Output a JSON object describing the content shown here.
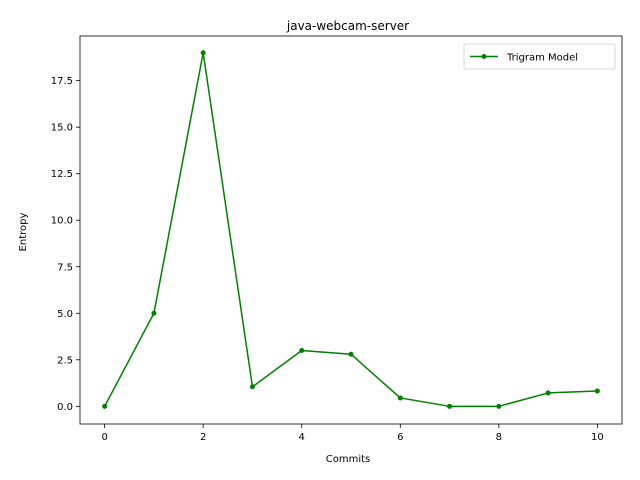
{
  "chart_data": {
    "type": "line",
    "title": "java-webcam-server",
    "xlabel": "Commits",
    "ylabel": "Entropy",
    "xlim": [
      -0.5,
      10.5
    ],
    "ylim": [
      -0.95,
      19.9
    ],
    "x_ticks": [
      0,
      2,
      4,
      6,
      8,
      10
    ],
    "y_ticks": [
      0.0,
      2.5,
      5.0,
      7.5,
      10.0,
      12.5,
      15.0,
      17.5
    ],
    "y_tick_labels": [
      "0.0",
      "2.5",
      "5.0",
      "7.5",
      "10.0",
      "12.5",
      "15.0",
      "17.5"
    ],
    "grid": false,
    "legend_position": "top-right",
    "series": [
      {
        "name": "Trigram Model",
        "color": "#008000",
        "marker": "point",
        "x": [
          0,
          1,
          2,
          3,
          4,
          5,
          6,
          7,
          8,
          9,
          10
        ],
        "y": [
          0.0,
          5.0,
          19.0,
          1.05,
          3.0,
          2.8,
          0.45,
          0.0,
          0.0,
          0.72,
          0.82
        ]
      }
    ]
  }
}
